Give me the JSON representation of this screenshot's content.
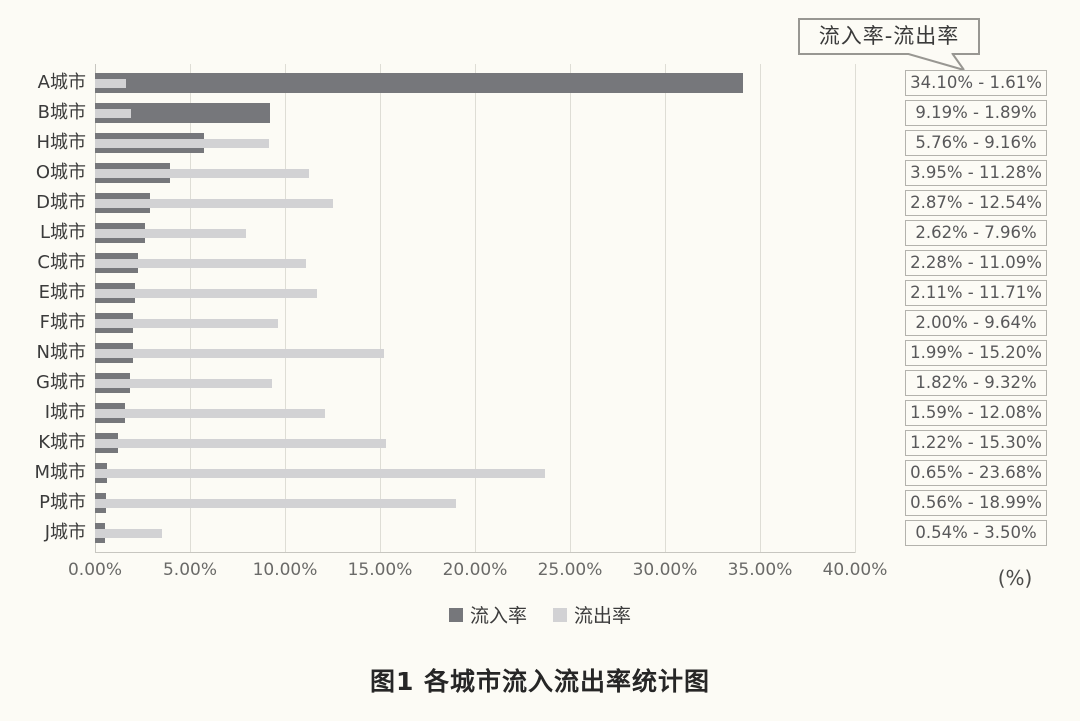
{
  "callout": {
    "label": "流入率-流出率"
  },
  "legend": {
    "inflow_label": "流入率",
    "outflow_label": "流出率"
  },
  "axis": {
    "unit_label": "(%)"
  },
  "caption": "图1 各城市流入流出率统计图",
  "colors": {
    "background": "#FCFBF5",
    "inflow_bar": "#76777B",
    "outflow_bar": "#D2D2D4",
    "legend_inflow": "#85868A",
    "gridline": "#DEDDD5",
    "axis_line": "#C7C6C0",
    "value_box_border": "#B3B2AC",
    "callout_border": "#989792"
  },
  "chart_data": {
    "type": "bar",
    "orientation": "horizontal",
    "title": "图1 各城市流入流出率统计图",
    "categories": [
      "A城市",
      "B城市",
      "H城市",
      "O城市",
      "D城市",
      "L城市",
      "C城市",
      "E城市",
      "F城市",
      "N城市",
      "G城市",
      "I城市",
      "K城市",
      "M城市",
      "P城市",
      "J城市"
    ],
    "series": [
      {
        "name": "流入率",
        "values": [
          34.1,
          9.19,
          5.76,
          3.95,
          2.87,
          2.62,
          2.28,
          2.11,
          2.0,
          1.99,
          1.82,
          1.59,
          1.22,
          0.65,
          0.56,
          0.54
        ]
      },
      {
        "name": "流出率",
        "values": [
          1.61,
          1.89,
          9.16,
          11.28,
          12.54,
          7.96,
          11.09,
          11.71,
          9.64,
          15.2,
          9.32,
          12.08,
          15.3,
          23.68,
          18.99,
          3.5
        ]
      }
    ],
    "value_labels": [
      "34.10% - 1.61%",
      "9.19% - 1.89%",
      "5.76% - 9.16%",
      "3.95% - 11.28%",
      "2.87% - 12.54%",
      "2.62% - 7.96%",
      "2.28% - 11.09%",
      "2.11% - 11.71%",
      "2.00% - 9.64%",
      "1.99% - 15.20%",
      "1.82% - 9.32%",
      "1.59% - 12.08%",
      "1.22% - 15.30%",
      "0.65% - 23.68%",
      "0.56% - 18.99%",
      "0.54% - 3.50%"
    ],
    "xlim": [
      0,
      40
    ],
    "x_tick_step": 5,
    "x_tick_labels": [
      "0.00%",
      "5.00%",
      "10.00%",
      "15.00%",
      "20.00%",
      "25.00%",
      "30.00%",
      "35.00%",
      "40.00%"
    ],
    "grid": true,
    "legend_position": "bottom",
    "xlabel": "(%)",
    "ylabel": ""
  }
}
